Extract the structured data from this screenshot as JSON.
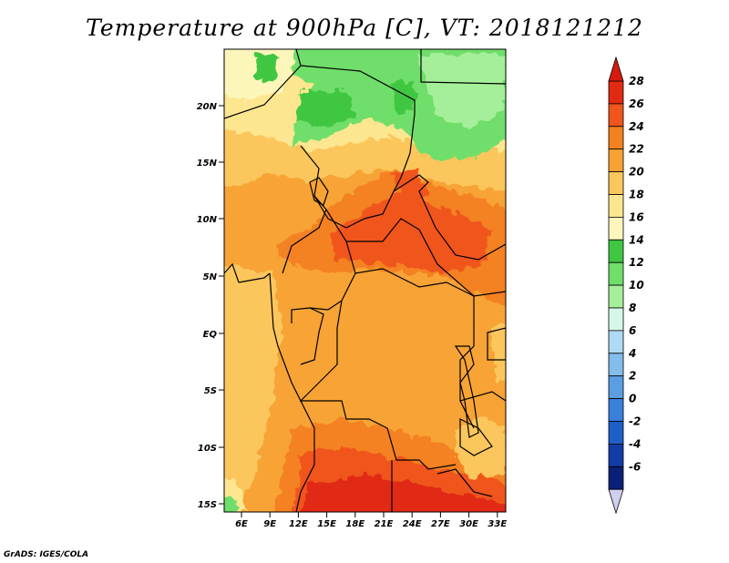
{
  "title": "Temperature at 900hPa [C], VT: 2018121212",
  "credit": "GrADS: IGES/COLA",
  "map": {
    "lat_ticks": [
      "20N",
      "15N",
      "10N",
      "5N",
      "EQ",
      "5S",
      "10S",
      "15S"
    ],
    "lon_ticks": [
      "6E",
      "9E",
      "12E",
      "15E",
      "18E",
      "21E",
      "24E",
      "27E",
      "30E",
      "33E"
    ]
  },
  "colorbar": {
    "labels": [
      "28",
      "26",
      "24",
      "22",
      "20",
      "18",
      "16",
      "14",
      "12",
      "10",
      "8",
      "6",
      "4",
      "2",
      "0",
      "-2",
      "-4",
      "-6"
    ],
    "colors": [
      "#e02b12",
      "#f0551c",
      "#f48120",
      "#f7a334",
      "#fbc65b",
      "#fde690",
      "#fcf6ba",
      "#3fc743",
      "#6fde6a",
      "#a5ef9a",
      "#d6f7e8",
      "#aedbf3",
      "#82bdeb",
      "#5b9ee2",
      "#3a7fda",
      "#1f5fc8",
      "#123da6",
      "#0a1f78"
    ],
    "top_arrow_color": "#d61a10",
    "bottom_arrow_color": "#cfcfee"
  }
}
